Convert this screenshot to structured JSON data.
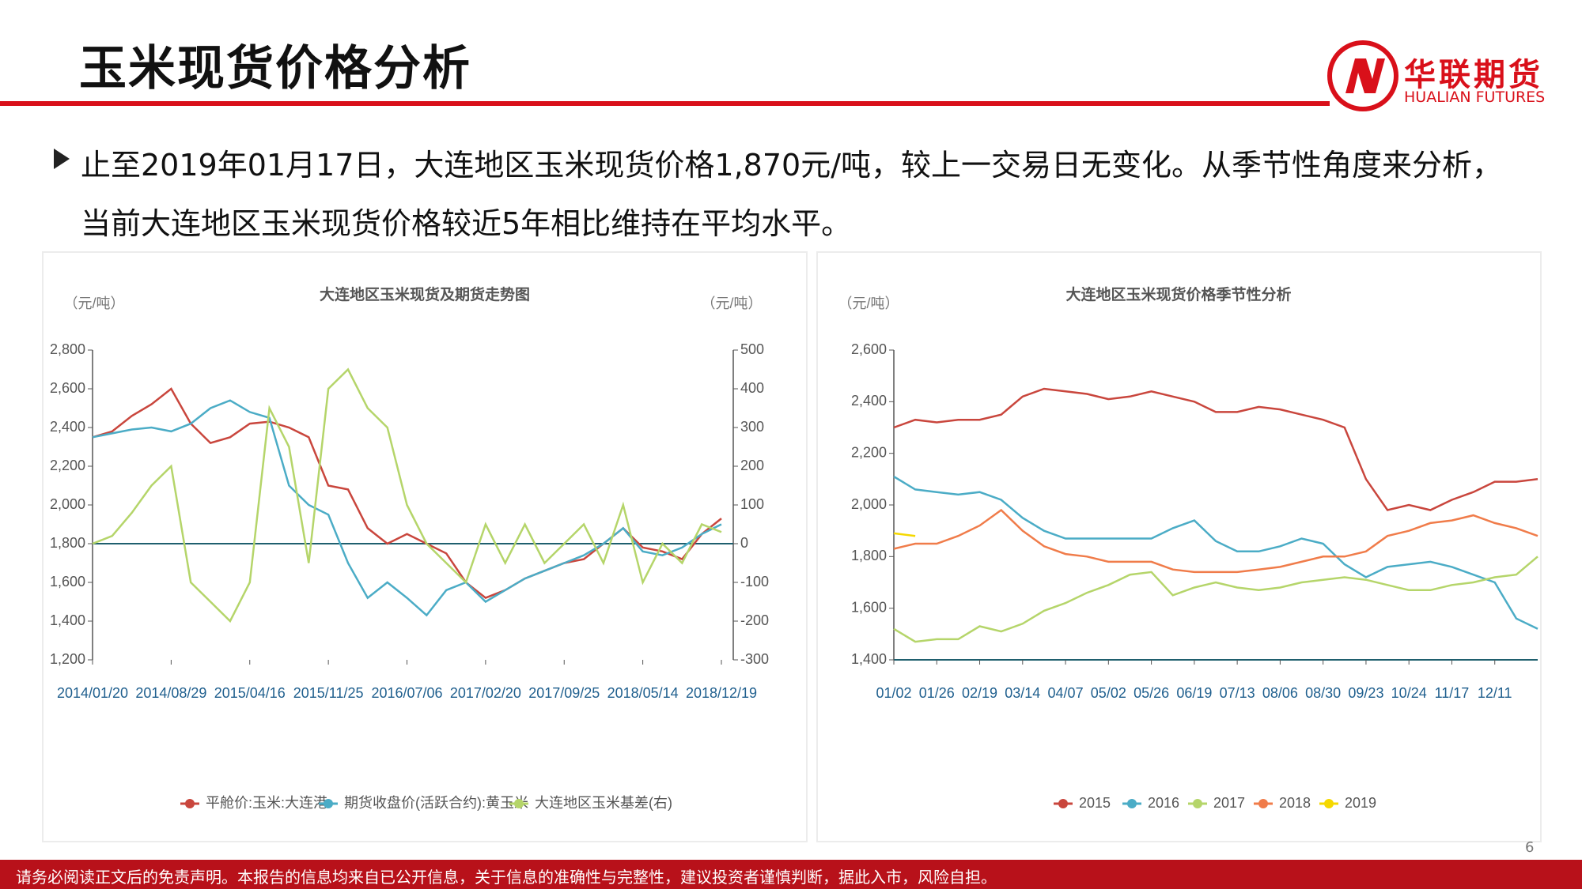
{
  "header": {
    "title": "玉米现货价格分析",
    "logo_cn": "华联期货",
    "logo_en": "HUALIAN FUTURES"
  },
  "body": {
    "bullet": "止至2019年01月17日，大连地区玉米现货价格1,870元/吨，较上一交易日无变化。从季节性角度来分析，当前大连地区玉米现货价格较近5年相比维持在平均水平。"
  },
  "footer": {
    "page": "6",
    "disclaimer": "请务必阅读正文后的免责声明。本报告的信息均来自已公开信息，关于信息的准确性与完整性，建议投资者谨慎判断，据此入市，风险自担。"
  },
  "chart_data": [
    {
      "type": "line",
      "title": "大连地区玉米现货及期货走势图",
      "y_unit": "（元/吨）",
      "y2_unit": "（元/吨）",
      "categories": [
        "2014/01/20",
        null,
        null,
        null,
        "2014/08/29",
        null,
        null,
        null,
        "2015/04/16",
        null,
        null,
        null,
        "2015/11/25",
        null,
        null,
        null,
        "2016/07/06",
        null,
        null,
        null,
        "2017/02/20",
        null,
        null,
        null,
        "2017/09/25",
        null,
        null,
        null,
        "2018/05/14",
        null,
        null,
        null,
        "2018/12/19"
      ],
      "series": [
        {
          "name": "平舱价:玉米:大连港",
          "color": "#c9463d",
          "values": [
            2350,
            2380,
            2460,
            2520,
            2600,
            2420,
            2320,
            2350,
            2420,
            2430,
            2400,
            2350,
            2100,
            2080,
            1880,
            1800,
            1850,
            1800,
            1750,
            1600,
            1520,
            1560,
            1620,
            1660,
            1700,
            1720,
            1800,
            1880,
            1780,
            1760,
            1720,
            1850,
            1930
          ]
        },
        {
          "name": "期货收盘价(活跃合约):黄玉米",
          "color": "#4bacc6",
          "values": [
            2350,
            2370,
            2390,
            2400,
            2380,
            2420,
            2500,
            2540,
            2480,
            2450,
            2100,
            2000,
            1950,
            1700,
            1520,
            1600,
            1520,
            1430,
            1560,
            1600,
            1500,
            1560,
            1620,
            1660,
            1700,
            1740,
            1800,
            1880,
            1760,
            1740,
            1780,
            1850,
            1900
          ]
        },
        {
          "name": "大连地区玉米基差(右)",
          "color": "#b5d56a",
          "axis": "y2",
          "values": [
            0,
            20,
            80,
            150,
            200,
            -100,
            -150,
            -200,
            -100,
            350,
            250,
            -50,
            400,
            450,
            350,
            300,
            100,
            0,
            -50,
            -100,
            50,
            -50,
            50,
            -50,
            0,
            50,
            -50,
            100,
            -100,
            0,
            -50,
            50,
            30
          ]
        }
      ],
      "ylim": [
        1200,
        2800
      ],
      "yticks": [
        {
          "value": 1200,
          "label": "1,200"
        },
        {
          "value": 1400,
          "label": "1,400"
        },
        {
          "value": 1600,
          "label": "1,600"
        },
        {
          "value": 1800,
          "label": "1,800"
        },
        {
          "value": 2000,
          "label": "2,000"
        },
        {
          "value": 2200,
          "label": "2,200"
        },
        {
          "value": 2400,
          "label": "2,400"
        },
        {
          "value": 2600,
          "label": "2,600"
        },
        {
          "value": 2800,
          "label": "2,800"
        }
      ],
      "y2lim": [
        -300,
        500
      ],
      "y2ticks": [
        -300,
        -200,
        -100,
        0,
        100,
        200,
        300,
        400,
        500
      ]
    },
    {
      "type": "line",
      "title": "大连地区玉米现货价格季节性分析",
      "y_unit": "（元/吨）",
      "categories": [
        "01/02",
        null,
        "01/26",
        null,
        "02/19",
        null,
        "03/14",
        null,
        "04/07",
        null,
        "05/02",
        null,
        "05/26",
        null,
        "06/19",
        null,
        "07/13",
        null,
        "08/06",
        null,
        "08/30",
        null,
        "09/23",
        null,
        "10/24",
        null,
        "11/17",
        null,
        "12/11",
        null,
        null
      ],
      "series": [
        {
          "name": "2015",
          "color": "#c9463d",
          "values": [
            2300,
            2330,
            2320,
            2330,
            2330,
            2350,
            2420,
            2450,
            2440,
            2430,
            2410,
            2420,
            2440,
            2420,
            2400,
            2360,
            2360,
            2380,
            2370,
            2350,
            2330,
            2300,
            2100,
            1980,
            2000,
            1980,
            2020,
            2050,
            2090,
            2090,
            2100
          ]
        },
        {
          "name": "2016",
          "color": "#4bacc6",
          "values": [
            2110,
            2060,
            2050,
            2040,
            2050,
            2020,
            1950,
            1900,
            1870,
            1870,
            1870,
            1870,
            1870,
            1910,
            1940,
            1860,
            1820,
            1820,
            1840,
            1870,
            1850,
            1770,
            1720,
            1760,
            1770,
            1780,
            1760,
            1730,
            1700,
            1560,
            1520
          ]
        },
        {
          "name": "2017",
          "color": "#b5d56a",
          "values": [
            1520,
            1470,
            1480,
            1480,
            1530,
            1510,
            1540,
            1590,
            1620,
            1660,
            1690,
            1730,
            1740,
            1650,
            1680,
            1700,
            1680,
            1670,
            1680,
            1700,
            1710,
            1720,
            1710,
            1690,
            1670,
            1670,
            1690,
            1700,
            1720,
            1730,
            1800
          ]
        },
        {
          "name": "2018",
          "color": "#f07c4a",
          "values": [
            1830,
            1850,
            1850,
            1880,
            1920,
            1980,
            1900,
            1840,
            1810,
            1800,
            1780,
            1780,
            1780,
            1750,
            1740,
            1740,
            1740,
            1750,
            1760,
            1780,
            1800,
            1800,
            1820,
            1880,
            1900,
            1930,
            1940,
            1960,
            1930,
            1910,
            1880
          ]
        },
        {
          "name": "2019",
          "color": "#f5d800",
          "values": [
            1890,
            1880,
            null,
            null,
            null,
            null,
            null,
            null,
            null,
            null,
            null,
            null,
            null,
            null,
            null,
            null,
            null,
            null,
            null,
            null,
            null,
            null,
            null,
            null,
            null,
            null,
            null,
            null,
            null,
            null,
            null
          ]
        }
      ],
      "ylim": [
        1400,
        2600
      ],
      "yticks": [
        {
          "value": 1400,
          "label": "1,400"
        },
        {
          "value": 1600,
          "label": "1,600"
        },
        {
          "value": 1800,
          "label": "1,800"
        },
        {
          "value": 2000,
          "label": "2,000"
        },
        {
          "value": 2200,
          "label": "2,200"
        },
        {
          "value": 2400,
          "label": "2,400"
        },
        {
          "value": 2600,
          "label": "2,600"
        }
      ]
    }
  ]
}
